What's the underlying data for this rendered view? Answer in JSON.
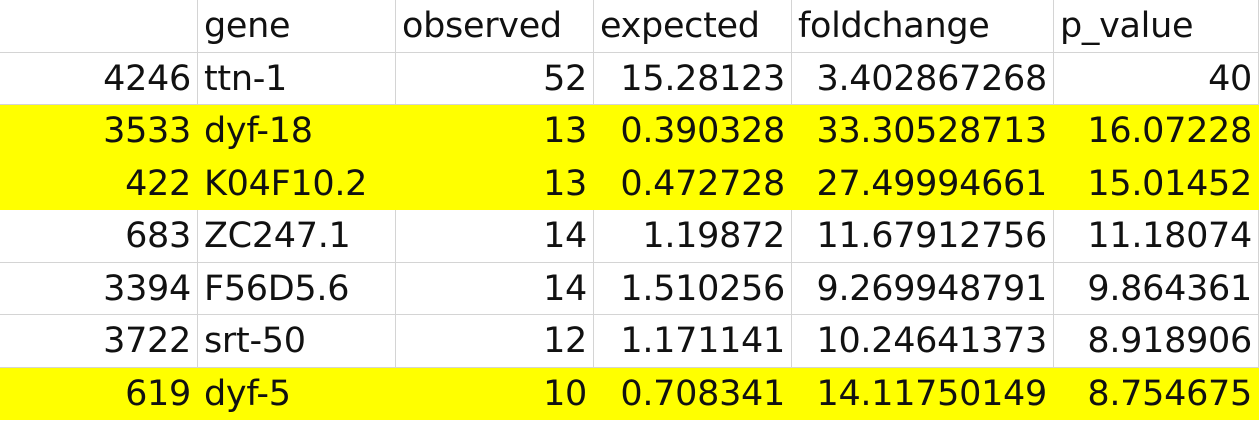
{
  "table": {
    "headers": [
      "",
      "gene",
      "observed",
      "expected",
      "foldchange",
      "p_value"
    ],
    "highlight_color": "#ffff00",
    "rows": [
      {
        "highlighted": false,
        "cells": [
          "4246",
          "ttn-1",
          "52",
          "15.28123",
          "3.402867268",
          "40"
        ]
      },
      {
        "highlighted": true,
        "cells": [
          "3533",
          "dyf-18",
          "13",
          "0.390328",
          "33.30528713",
          "16.07228"
        ]
      },
      {
        "highlighted": true,
        "cells": [
          "422",
          "K04F10.2",
          "13",
          "0.472728",
          "27.49994661",
          "15.01452"
        ]
      },
      {
        "highlighted": false,
        "cells": [
          "683",
          "ZC247.1",
          "14",
          "1.19872",
          "11.67912756",
          "11.18074"
        ]
      },
      {
        "highlighted": false,
        "cells": [
          "3394",
          "F56D5.6",
          "14",
          "1.510256",
          "9.269948791",
          "9.864361"
        ]
      },
      {
        "highlighted": false,
        "cells": [
          "3722",
          "srt-50",
          "12",
          "1.171141",
          "10.24641373",
          "8.918906"
        ]
      },
      {
        "highlighted": true,
        "cells": [
          "619",
          "dyf-5",
          "10",
          "0.708341",
          "14.11750149",
          "8.754675"
        ]
      }
    ]
  }
}
